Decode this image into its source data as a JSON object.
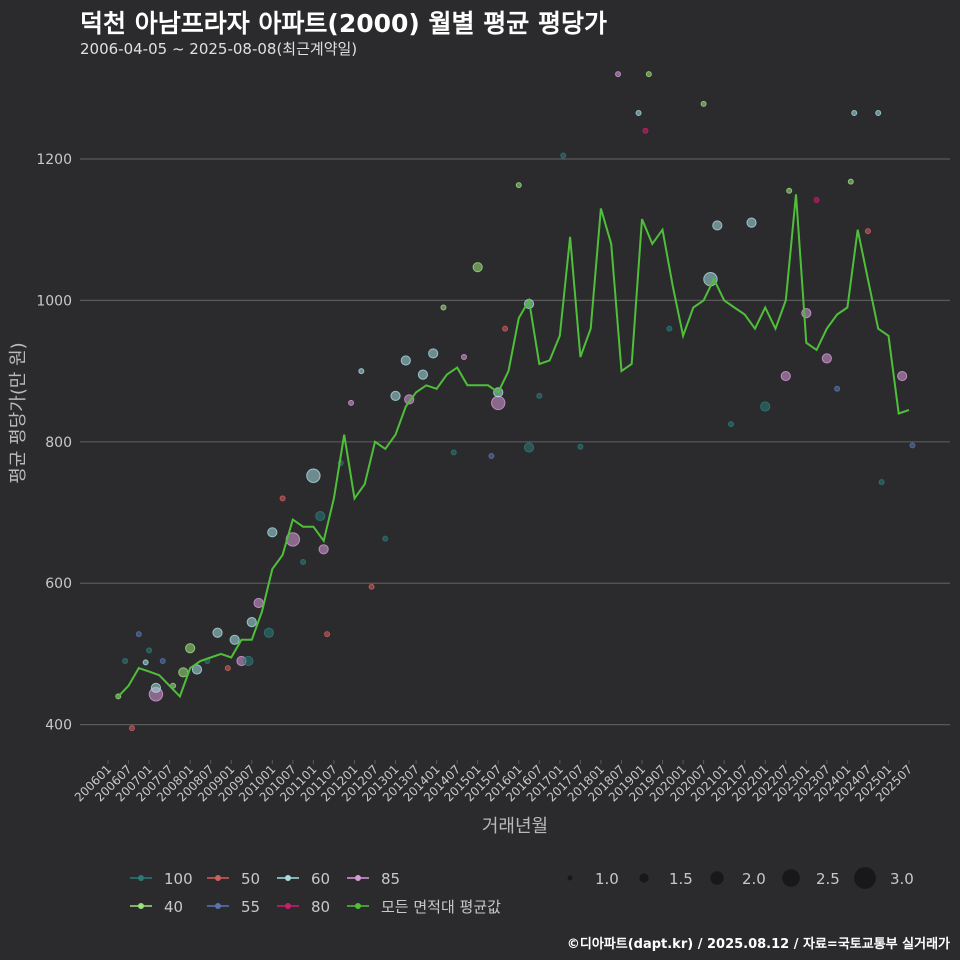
{
  "title": "덕천 아남프라자 아파트(2000) 월별 평균 평당가",
  "subtitle": "2006-04-05 ~ 2025-08-08(최근계약일)",
  "caption": "©디아파트(dapt.kr) / 2025.08.12 / 자료=국토교통부 실거래가",
  "colors": {
    "background": "#2b2b2d",
    "grid": "#5a5a5a",
    "text": "#c8c8c8",
    "series": {
      "100": "#2a7a78",
      "40": "#9ee07e",
      "50": "#d0605e",
      "55": "#5a74b0",
      "60": "#a6dde0",
      "80": "#cc1e6e",
      "85": "#d89ad8",
      "avg": "#4fbf3a"
    }
  },
  "chart_data": {
    "type": "line",
    "xlabel": "거래년월",
    "ylabel": "평균 평당가(만 원)",
    "ylim": [
      350,
      1340
    ],
    "yticks": [
      400,
      600,
      800,
      1000,
      1200
    ],
    "x_tick_labels": [
      "200601",
      "200607",
      "200701",
      "200707",
      "200801",
      "200807",
      "200901",
      "200907",
      "201001",
      "201007",
      "201101",
      "201107",
      "201201",
      "201207",
      "201301",
      "201307",
      "201401",
      "201407",
      "201501",
      "201507",
      "201601",
      "201607",
      "201701",
      "201707",
      "201801",
      "201807",
      "201901",
      "201907",
      "202001",
      "202007",
      "202101",
      "202107",
      "202201",
      "202207",
      "202301",
      "202307",
      "202401",
      "202407",
      "202501",
      "202507"
    ],
    "grid": true,
    "legend_position": "bottom",
    "legend_color": [
      {
        "key": "100",
        "label": "100"
      },
      {
        "key": "50",
        "label": "50"
      },
      {
        "key": "60",
        "label": "60"
      },
      {
        "key": "85",
        "label": "85"
      },
      {
        "key": "40",
        "label": "40"
      },
      {
        "key": "55",
        "label": "55"
      },
      {
        "key": "80",
        "label": "80"
      },
      {
        "key": "avg",
        "label": "모든 면적대 평균값"
      }
    ],
    "legend_size": [
      {
        "label": "1.0",
        "value": 1.0
      },
      {
        "label": "1.5",
        "value": 1.5
      },
      {
        "label": "2.0",
        "value": 2.0
      },
      {
        "label": "2.5",
        "value": 2.5
      },
      {
        "label": "3.0",
        "value": 3.0
      }
    ],
    "average_line": {
      "name": "모든 면적대 평균값",
      "x": [
        "2006-04",
        "2006-07",
        "2006-10",
        "2007-01",
        "2007-04",
        "2007-07",
        "2007-10",
        "2008-01",
        "2008-04",
        "2008-07",
        "2008-10",
        "2009-01",
        "2009-04",
        "2009-07",
        "2009-10",
        "2010-01",
        "2010-04",
        "2010-07",
        "2010-10",
        "2011-01",
        "2011-04",
        "2011-07",
        "2011-10",
        "2012-01",
        "2012-04",
        "2012-07",
        "2012-10",
        "2013-01",
        "2013-04",
        "2013-07",
        "2013-10",
        "2014-01",
        "2014-04",
        "2014-07",
        "2014-10",
        "2015-01",
        "2015-04",
        "2015-07",
        "2015-10",
        "2016-01",
        "2016-04",
        "2016-07",
        "2016-10",
        "2017-01",
        "2017-04",
        "2017-07",
        "2017-10",
        "2018-01",
        "2018-04",
        "2018-07",
        "2018-10",
        "2019-01",
        "2019-04",
        "2019-07",
        "2019-10",
        "2020-01",
        "2020-04",
        "2020-07",
        "2020-10",
        "2021-01",
        "2021-04",
        "2021-07",
        "2021-10",
        "2022-01",
        "2022-04",
        "2022-07",
        "2022-10",
        "2023-01",
        "2023-04",
        "2023-07",
        "2023-10",
        "2024-01",
        "2024-04",
        "2024-07",
        "2024-10",
        "2025-01",
        "2025-04",
        "2025-07"
      ],
      "values": [
        440,
        455,
        480,
        475,
        470,
        455,
        440,
        480,
        490,
        495,
        500,
        495,
        520,
        520,
        560,
        620,
        640,
        690,
        680,
        680,
        660,
        720,
        810,
        720,
        740,
        800,
        790,
        810,
        850,
        870,
        880,
        875,
        895,
        905,
        880,
        880,
        880,
        870,
        900,
        975,
        1000,
        910,
        915,
        950,
        1090,
        920,
        960,
        1130,
        1080,
        900,
        910,
        1115,
        1080,
        1100,
        1020,
        950,
        990,
        1000,
        1030,
        1000,
        990,
        980,
        960,
        990,
        960,
        1000,
        1150,
        940,
        930,
        960,
        980,
        990,
        1100,
        1030,
        960,
        950,
        840,
        845
      ]
    },
    "points": [
      {
        "x": "2006-04",
        "y": 440,
        "area": "40",
        "size": 1.0
      },
      {
        "x": "2006-06",
        "y": 490,
        "area": "100",
        "size": 1.0
      },
      {
        "x": "2006-08",
        "y": 395,
        "area": "50",
        "size": 1.0
      },
      {
        "x": "2006-10",
        "y": 528,
        "area": "55",
        "size": 1.0
      },
      {
        "x": "2006-12",
        "y": 488,
        "area": "60",
        "size": 1.0
      },
      {
        "x": "2007-01",
        "y": 505,
        "area": "100",
        "size": 1.0
      },
      {
        "x": "2007-03",
        "y": 443,
        "area": "85",
        "size": 2.0
      },
      {
        "x": "2007-03",
        "y": 452,
        "area": "60",
        "size": 1.5
      },
      {
        "x": "2007-05",
        "y": 490,
        "area": "55",
        "size": 1.0
      },
      {
        "x": "2007-08",
        "y": 455,
        "area": "40",
        "size": 1.0
      },
      {
        "x": "2007-11",
        "y": 474,
        "area": "40",
        "size": 1.5
      },
      {
        "x": "2008-01",
        "y": 508,
        "area": "40",
        "size": 1.5
      },
      {
        "x": "2008-03",
        "y": 478,
        "area": "60",
        "size": 1.5
      },
      {
        "x": "2008-06",
        "y": 490,
        "area": "100",
        "size": 1.0
      },
      {
        "x": "2008-09",
        "y": 530,
        "area": "60",
        "size": 1.5
      },
      {
        "x": "2008-12",
        "y": 480,
        "area": "50",
        "size": 1.0
      },
      {
        "x": "2009-02",
        "y": 520,
        "area": "60",
        "size": 1.5
      },
      {
        "x": "2009-04",
        "y": 490,
        "area": "85",
        "size": 1.5
      },
      {
        "x": "2009-06",
        "y": 490,
        "area": "100",
        "size": 1.5
      },
      {
        "x": "2009-07",
        "y": 545,
        "area": "60",
        "size": 1.5
      },
      {
        "x": "2009-09",
        "y": 572,
        "area": "85",
        "size": 1.5
      },
      {
        "x": "2009-12",
        "y": 530,
        "area": "100",
        "size": 1.5
      },
      {
        "x": "2010-01",
        "y": 672,
        "area": "60",
        "size": 1.5
      },
      {
        "x": "2010-04",
        "y": 720,
        "area": "50",
        "size": 1.0
      },
      {
        "x": "2010-07",
        "y": 662,
        "area": "85",
        "size": 2.0
      },
      {
        "x": "2010-10",
        "y": 630,
        "area": "100",
        "size": 1.0
      },
      {
        "x": "2011-01",
        "y": 752,
        "area": "60",
        "size": 2.0
      },
      {
        "x": "2011-03",
        "y": 695,
        "area": "100",
        "size": 1.5
      },
      {
        "x": "2011-04",
        "y": 648,
        "area": "85",
        "size": 1.5
      },
      {
        "x": "2011-05",
        "y": 528,
        "area": "50",
        "size": 1.0
      },
      {
        "x": "2011-09",
        "y": 770,
        "area": "100",
        "size": 1.0
      },
      {
        "x": "2011-12",
        "y": 855,
        "area": "85",
        "size": 1.0
      },
      {
        "x": "2012-03",
        "y": 900,
        "area": "60",
        "size": 1.0
      },
      {
        "x": "2012-06",
        "y": 595,
        "area": "50",
        "size": 1.0
      },
      {
        "x": "2012-10",
        "y": 663,
        "area": "100",
        "size": 1.0
      },
      {
        "x": "2013-01",
        "y": 865,
        "area": "60",
        "size": 1.5
      },
      {
        "x": "2013-04",
        "y": 915,
        "area": "60",
        "size": 1.5
      },
      {
        "x": "2013-05",
        "y": 860,
        "area": "85",
        "size": 1.5
      },
      {
        "x": "2013-09",
        "y": 895,
        "area": "60",
        "size": 1.5
      },
      {
        "x": "2013-12",
        "y": 925,
        "area": "60",
        "size": 1.5
      },
      {
        "x": "2014-03",
        "y": 990,
        "area": "40",
        "size": 1.0
      },
      {
        "x": "2014-06",
        "y": 785,
        "area": "100",
        "size": 1.0
      },
      {
        "x": "2014-09",
        "y": 920,
        "area": "85",
        "size": 1.0
      },
      {
        "x": "2015-01",
        "y": 1047,
        "area": "40",
        "size": 1.5
      },
      {
        "x": "2015-05",
        "y": 780,
        "area": "55",
        "size": 1.0
      },
      {
        "x": "2015-07",
        "y": 855,
        "area": "85",
        "size": 2.0
      },
      {
        "x": "2015-07",
        "y": 870,
        "area": "60",
        "size": 1.5
      },
      {
        "x": "2015-09",
        "y": 960,
        "area": "50",
        "size": 1.0
      },
      {
        "x": "2016-01",
        "y": 1163,
        "area": "40",
        "size": 1.0
      },
      {
        "x": "2016-04",
        "y": 995,
        "area": "60",
        "size": 1.5
      },
      {
        "x": "2016-04",
        "y": 792,
        "area": "100",
        "size": 1.5
      },
      {
        "x": "2016-07",
        "y": 865,
        "area": "100",
        "size": 1.0
      },
      {
        "x": "2017-02",
        "y": 1205,
        "area": "100",
        "size": 1.0
      },
      {
        "x": "2017-07",
        "y": 793,
        "area": "100",
        "size": 1.0
      },
      {
        "x": "2018-06",
        "y": 1320,
        "area": "85",
        "size": 1.0
      },
      {
        "x": "2018-12",
        "y": 1265,
        "area": "60",
        "size": 1.0
      },
      {
        "x": "2019-02",
        "y": 1240,
        "area": "80",
        "size": 1.0
      },
      {
        "x": "2019-03",
        "y": 1320,
        "area": "40",
        "size": 1.0
      },
      {
        "x": "2019-09",
        "y": 960,
        "area": "100",
        "size": 1.0
      },
      {
        "x": "2020-07",
        "y": 1278,
        "area": "40",
        "size": 1.0
      },
      {
        "x": "2020-09",
        "y": 1030,
        "area": "60",
        "size": 2.0
      },
      {
        "x": "2020-11",
        "y": 1106,
        "area": "60",
        "size": 1.5
      },
      {
        "x": "2021-03",
        "y": 825,
        "area": "100",
        "size": 1.0
      },
      {
        "x": "2021-09",
        "y": 1110,
        "area": "60",
        "size": 1.5
      },
      {
        "x": "2022-01",
        "y": 850,
        "area": "100",
        "size": 1.5
      },
      {
        "x": "2022-07",
        "y": 893,
        "area": "85",
        "size": 1.5
      },
      {
        "x": "2022-08",
        "y": 1155,
        "area": "40",
        "size": 1.0
      },
      {
        "x": "2023-01",
        "y": 982,
        "area": "85",
        "size": 1.5
      },
      {
        "x": "2023-04",
        "y": 1142,
        "area": "80",
        "size": 1.0
      },
      {
        "x": "2023-07",
        "y": 918,
        "area": "85",
        "size": 1.5
      },
      {
        "x": "2023-10",
        "y": 875,
        "area": "55",
        "size": 1.0
      },
      {
        "x": "2024-02",
        "y": 1168,
        "area": "40",
        "size": 1.0
      },
      {
        "x": "2024-03",
        "y": 1265,
        "area": "60",
        "size": 1.0
      },
      {
        "x": "2024-07",
        "y": 1098,
        "area": "50",
        "size": 1.0
      },
      {
        "x": "2024-10",
        "y": 1265,
        "area": "60",
        "size": 1.0
      },
      {
        "x": "2024-11",
        "y": 743,
        "area": "100",
        "size": 1.0
      },
      {
        "x": "2025-05",
        "y": 893,
        "area": "85",
        "size": 1.5
      },
      {
        "x": "2025-08",
        "y": 795,
        "area": "55",
        "size": 1.0
      }
    ]
  }
}
